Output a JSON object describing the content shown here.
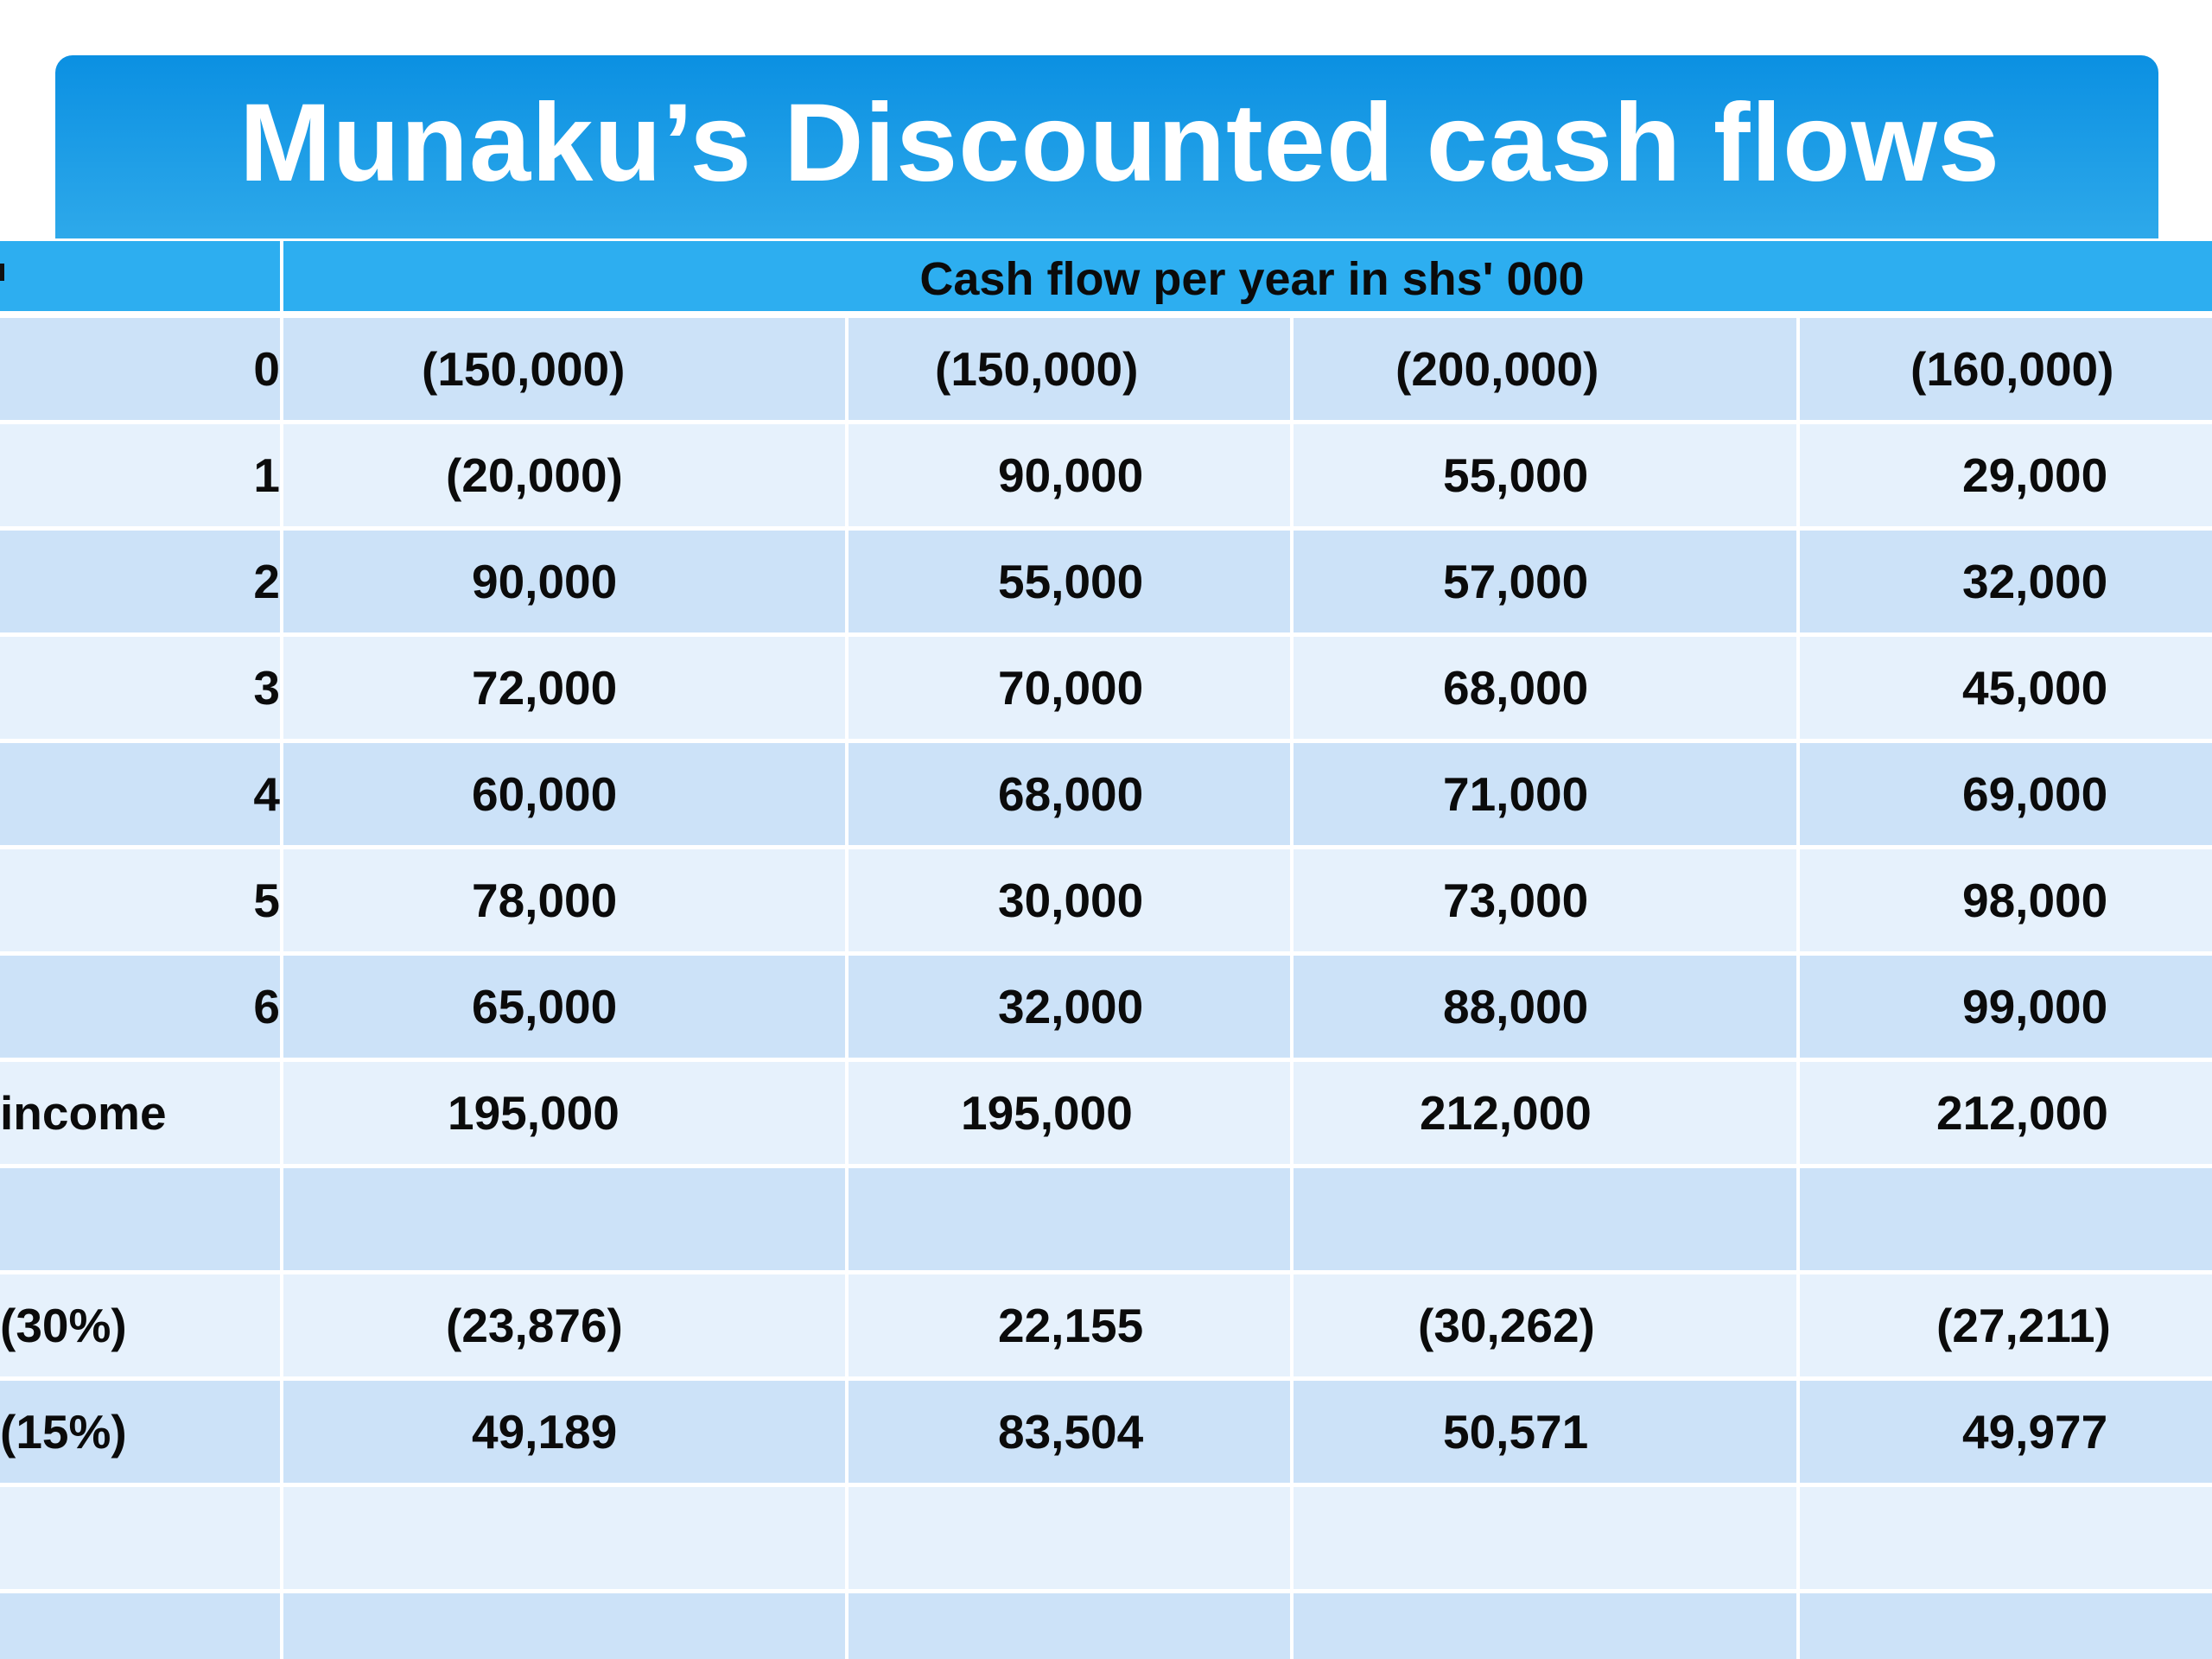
{
  "title": "Munaku’s Discounted cash flows",
  "table": {
    "header": "Cash flow per year in shs' 000",
    "rows": [
      {
        "label": "0",
        "values": [
          "(150,000)",
          "(150,000)",
          "(200,000)",
          "(160,000)"
        ]
      },
      {
        "label": "1",
        "values": [
          "(20,000)",
          "90,000",
          "55,000",
          "29,000"
        ]
      },
      {
        "label": "2",
        "values": [
          "90,000",
          "55,000",
          "57,000",
          "32,000"
        ]
      },
      {
        "label": "3",
        "values": [
          "72,000",
          "70,000",
          "68,000",
          "45,000"
        ]
      },
      {
        "label": "4",
        "values": [
          "60,000",
          "68,000",
          "71,000",
          "69,000"
        ]
      },
      {
        "label": "5",
        "values": [
          "78,000",
          "30,000",
          "73,000",
          "98,000"
        ]
      },
      {
        "label": "6",
        "values": [
          "65,000",
          "32,000",
          "88,000",
          "99,000"
        ]
      },
      {
        "label": "income",
        "values": [
          "195,000",
          "195,000",
          "212,000",
          "212,000"
        ]
      },
      {
        "label": "",
        "values": [
          "",
          "",
          "",
          ""
        ]
      },
      {
        "label": "(30%)",
        "values": [
          "(23,876)",
          "22,155",
          "(30,262)",
          "(27,211)"
        ]
      },
      {
        "label": "(15%)",
        "values": [
          "49,189",
          "83,504",
          "50,571",
          "49,977"
        ]
      },
      {
        "label": "",
        "values": [
          "",
          "",
          "",
          ""
        ]
      }
    ]
  }
}
